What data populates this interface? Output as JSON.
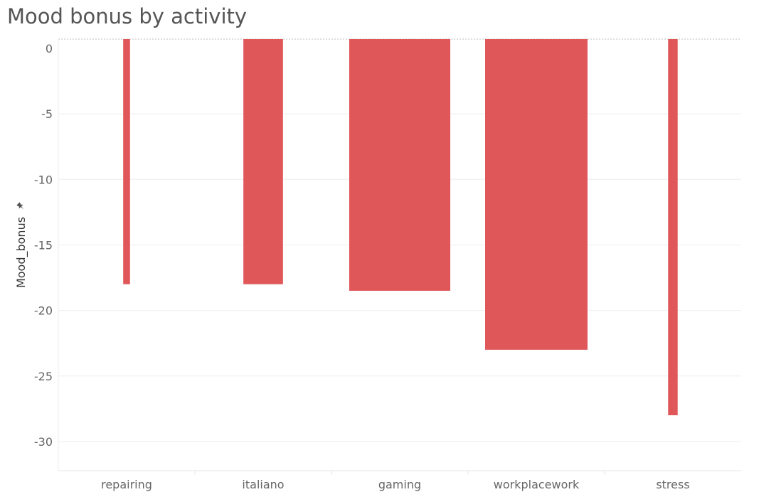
{
  "title": "Mood bonus by activity",
  "chart_data": {
    "type": "bar",
    "title": "Mood bonus by activity",
    "xlabel": "",
    "ylabel": "Mood_bonus",
    "categories": [
      "repairing",
      "italiano",
      "gaming",
      "workplacework",
      "stress"
    ],
    "values": [
      -18,
      -18,
      -18.5,
      -23,
      -28
    ],
    "bar_widths_relative": [
      0.05,
      0.29,
      0.74,
      0.75,
      0.07
    ],
    "ylim": [
      -32.5,
      0.7
    ],
    "yticks": [
      0,
      -5,
      -10,
      -15,
      -20,
      -25,
      -30
    ],
    "grid": true,
    "bar_color": "#e0575a"
  }
}
